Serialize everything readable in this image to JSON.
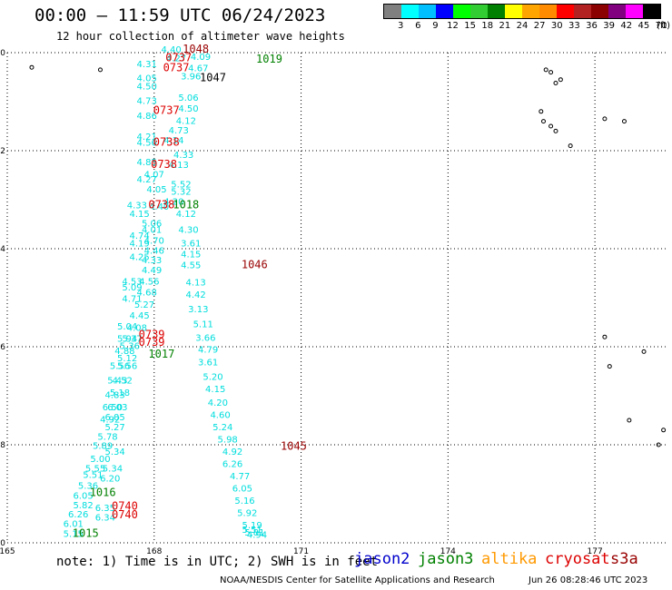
{
  "header": {
    "title": "00:00 – 11:59 UTC 06/24/2023",
    "subtitle": "12 hour collection of altimeter wave heights"
  },
  "color_scale": {
    "labels": [
      "3",
      "6",
      "9",
      "12",
      "15",
      "18",
      "21",
      "24",
      "27",
      "30",
      "33",
      "36",
      "39",
      "42",
      "45",
      "70"
    ],
    "unit": "(ft)",
    "colors": [
      "#808080",
      "#00ffff",
      "#00bfff",
      "#0000ff",
      "#00ff00",
      "#32cd32",
      "#008000",
      "#ffff00",
      "#ffa500",
      "#ff8c00",
      "#ff0000",
      "#b22222",
      "#8b0000",
      "#800080",
      "#ff00ff",
      "#000000"
    ]
  },
  "note": "note: 1) Time is in UTC; 2) SWH is in feet",
  "legend": {
    "items": [
      {
        "label": "jason2",
        "color": "#0000cc"
      },
      {
        "label": "jason3",
        "color": "#008000"
      },
      {
        "label": "altika",
        "color": "#ff9900"
      },
      {
        "label": "cryosat",
        "color": "#dd0000"
      },
      {
        "label": "s3a",
        "color": "#990000"
      }
    ]
  },
  "credit": {
    "source": "NOAA/NESDIS Center for Satellite Applications and Research",
    "timestamp": "Jun 26 08:28:46 UTC 2023"
  },
  "chart_data": {
    "type": "scatter",
    "title": "00:00 – 11:59 UTC 06/24/2023",
    "xlabel": "",
    "ylabel": "",
    "xlim": [
      165,
      178.5
    ],
    "ylim": [
      -10,
      0
    ],
    "x_ticks": [
      165,
      168,
      171,
      174,
      177
    ],
    "x_tick_labels": [
      "165",
      "168",
      "171",
      "174",
      "177"
    ],
    "y_ticks": [
      0,
      -2,
      -4,
      -6,
      -8,
      -10
    ],
    "y_tick_labels": [
      "0",
      "-2",
      "-4",
      "-6",
      "-8",
      "-10"
    ],
    "grid": true,
    "swh_points": [
      {
        "x": 167.85,
        "y": -0.3,
        "v": "4.31"
      },
      {
        "x": 168.35,
        "y": -0.0,
        "v": "4.40"
      },
      {
        "x": 168.45,
        "y": -0.18,
        "v": "4.27"
      },
      {
        "x": 167.85,
        "y": -0.58,
        "v": "4.05"
      },
      {
        "x": 167.85,
        "y": -0.75,
        "v": "4.50"
      },
      {
        "x": 167.85,
        "y": -1.05,
        "v": "4.73"
      },
      {
        "x": 167.85,
        "y": -1.35,
        "v": "4.86"
      },
      {
        "x": 167.85,
        "y": -1.78,
        "v": "4.21"
      },
      {
        "x": 167.85,
        "y": -1.9,
        "v": "4.56"
      },
      {
        "x": 167.85,
        "y": -2.3,
        "v": "4.85"
      },
      {
        "x": 167.85,
        "y": -2.65,
        "v": "4.27"
      },
      {
        "x": 167.65,
        "y": -3.18,
        "v": "4.33"
      },
      {
        "x": 167.7,
        "y": -3.35,
        "v": "4.15"
      },
      {
        "x": 167.7,
        "y": -3.8,
        "v": "4.74"
      },
      {
        "x": 167.7,
        "y": -3.95,
        "v": "4.19"
      },
      {
        "x": 167.7,
        "y": -4.23,
        "v": "4.25"
      },
      {
        "x": 167.55,
        "y": -4.73,
        "v": "4.53"
      },
      {
        "x": 167.55,
        "y": -4.85,
        "v": "5.09"
      },
      {
        "x": 167.55,
        "y": -5.08,
        "v": "4.71"
      },
      {
        "x": 167.45,
        "y": -5.65,
        "v": "5.04"
      },
      {
        "x": 167.45,
        "y": -5.9,
        "v": "5.94"
      },
      {
        "x": 167.4,
        "y": -6.15,
        "v": "4.88"
      },
      {
        "x": 167.3,
        "y": -6.45,
        "v": "5.56"
      },
      {
        "x": 167.25,
        "y": -6.75,
        "v": "5.43"
      },
      {
        "x": 167.2,
        "y": -7.05,
        "v": "4.83"
      },
      {
        "x": 167.15,
        "y": -7.3,
        "v": "6.50"
      },
      {
        "x": 167.1,
        "y": -7.55,
        "v": "4.92"
      },
      {
        "x": 167.05,
        "y": -7.9,
        "v": "5.78"
      },
      {
        "x": 166.95,
        "y": -8.08,
        "v": "5.89"
      },
      {
        "x": 166.9,
        "y": -8.35,
        "v": "5.00"
      },
      {
        "x": 166.8,
        "y": -8.55,
        "v": "5.55"
      },
      {
        "x": 166.75,
        "y": -8.68,
        "v": "5.51"
      },
      {
        "x": 166.65,
        "y": -8.9,
        "v": "5.36"
      },
      {
        "x": 166.55,
        "y": -9.1,
        "v": "6.05"
      },
      {
        "x": 166.55,
        "y": -9.3,
        "v": "5.82"
      },
      {
        "x": 166.45,
        "y": -9.48,
        "v": "6.26"
      },
      {
        "x": 166.35,
        "y": -9.68,
        "v": "6.01"
      },
      {
        "x": 166.35,
        "y": -9.88,
        "v": "5.15"
      },
      {
        "x": 168.0,
        "y": -2.55,
        "v": "4.07"
      },
      {
        "x": 168.05,
        "y": -2.85,
        "v": "4.05"
      },
      {
        "x": 168.1,
        "y": -3.2,
        "v": "4.40"
      },
      {
        "x": 167.95,
        "y": -3.55,
        "v": "5.06"
      },
      {
        "x": 167.95,
        "y": -3.68,
        "v": "4.01"
      },
      {
        "x": 168.0,
        "y": -3.9,
        "v": "4.70"
      },
      {
        "x": 168.0,
        "y": -4.1,
        "v": "4.46"
      },
      {
        "x": 167.95,
        "y": -4.3,
        "v": "4.33"
      },
      {
        "x": 167.95,
        "y": -4.5,
        "v": "4.49"
      },
      {
        "x": 167.9,
        "y": -4.73,
        "v": "4.56"
      },
      {
        "x": 167.85,
        "y": -4.95,
        "v": "4.68"
      },
      {
        "x": 167.8,
        "y": -5.2,
        "v": "5.27"
      },
      {
        "x": 167.7,
        "y": -5.43,
        "v": "4.45"
      },
      {
        "x": 167.65,
        "y": -5.68,
        "v": "4.08"
      },
      {
        "x": 167.55,
        "y": -5.9,
        "v": "5.37"
      },
      {
        "x": 167.5,
        "y": -6.05,
        "v": "5.36"
      },
      {
        "x": 167.45,
        "y": -6.3,
        "v": "5.12"
      },
      {
        "x": 167.45,
        "y": -6.45,
        "v": "5.56"
      },
      {
        "x": 167.35,
        "y": -6.75,
        "v": "4.52"
      },
      {
        "x": 167.3,
        "y": -7.0,
        "v": "5.18"
      },
      {
        "x": 167.25,
        "y": -7.3,
        "v": "6.03"
      },
      {
        "x": 167.2,
        "y": -7.5,
        "v": "6.05"
      },
      {
        "x": 167.2,
        "y": -7.7,
        "v": "5.27"
      },
      {
        "x": 167.2,
        "y": -8.2,
        "v": "5.34"
      },
      {
        "x": 167.15,
        "y": -8.55,
        "v": "5.34"
      },
      {
        "x": 167.1,
        "y": -8.75,
        "v": "6.20"
      },
      {
        "x": 167.0,
        "y": -9.35,
        "v": "6.35"
      },
      {
        "x": 167.0,
        "y": -9.55,
        "v": "6.34"
      },
      {
        "x": 168.95,
        "y": -0.15,
        "v": "4.09"
      },
      {
        "x": 168.9,
        "y": -0.38,
        "v": "4.67"
      },
      {
        "x": 168.75,
        "y": -0.55,
        "v": "3.96"
      },
      {
        "x": 168.7,
        "y": -0.98,
        "v": "5.06"
      },
      {
        "x": 168.7,
        "y": -1.2,
        "v": "4.50"
      },
      {
        "x": 168.65,
        "y": -1.45,
        "v": "4.12"
      },
      {
        "x": 168.5,
        "y": -1.65,
        "v": "4.73"
      },
      {
        "x": 168.4,
        "y": -1.85,
        "v": "4.14"
      },
      {
        "x": 168.6,
        "y": -2.15,
        "v": "4.33"
      },
      {
        "x": 168.5,
        "y": -2.35,
        "v": "4.13"
      },
      {
        "x": 168.55,
        "y": -2.75,
        "v": "5.52"
      },
      {
        "x": 168.55,
        "y": -2.9,
        "v": "5.32"
      },
      {
        "x": 168.4,
        "y": -3.1,
        "v": "4.20"
      },
      {
        "x": 168.65,
        "y": -3.35,
        "v": "4.12"
      },
      {
        "x": 168.7,
        "y": -3.68,
        "v": "4.30"
      },
      {
        "x": 168.75,
        "y": -3.95,
        "v": "3.61"
      },
      {
        "x": 168.75,
        "y": -4.18,
        "v": "4.15"
      },
      {
        "x": 168.75,
        "y": -4.4,
        "v": "4.55"
      },
      {
        "x": 168.85,
        "y": -4.75,
        "v": "4.13"
      },
      {
        "x": 168.85,
        "y": -5.0,
        "v": "4.42"
      },
      {
        "x": 168.9,
        "y": -5.3,
        "v": "3.13"
      },
      {
        "x": 169.0,
        "y": -5.6,
        "v": "5.11"
      },
      {
        "x": 169.05,
        "y": -5.88,
        "v": "3.66"
      },
      {
        "x": 169.1,
        "y": -6.12,
        "v": "4.79"
      },
      {
        "x": 169.1,
        "y": -6.38,
        "v": "3.61"
      },
      {
        "x": 169.2,
        "y": -6.68,
        "v": "5.20"
      },
      {
        "x": 169.25,
        "y": -6.93,
        "v": "4.15"
      },
      {
        "x": 169.3,
        "y": -7.2,
        "v": "4.20"
      },
      {
        "x": 169.35,
        "y": -7.45,
        "v": "4.60"
      },
      {
        "x": 169.4,
        "y": -7.7,
        "v": "5.24"
      },
      {
        "x": 169.5,
        "y": -7.95,
        "v": "5.98"
      },
      {
        "x": 169.6,
        "y": -8.2,
        "v": "4.92"
      },
      {
        "x": 169.6,
        "y": -8.45,
        "v": "6.26"
      },
      {
        "x": 169.75,
        "y": -8.7,
        "v": "4.77"
      },
      {
        "x": 169.8,
        "y": -8.95,
        "v": "6.05"
      },
      {
        "x": 169.85,
        "y": -9.2,
        "v": "5.16"
      },
      {
        "x": 169.9,
        "y": -9.45,
        "v": "5.92"
      },
      {
        "x": 170.0,
        "y": -9.7,
        "v": "5.19"
      },
      {
        "x": 170.0,
        "y": -9.8,
        "v": "5.51"
      },
      {
        "x": 170.05,
        "y": -9.85,
        "v": "5.81"
      },
      {
        "x": 170.1,
        "y": -9.9,
        "v": "4.94"
      }
    ],
    "time_markers": [
      {
        "x": 168.85,
        "y": -0.0,
        "label": "1048",
        "color": "#990000"
      },
      {
        "x": 168.5,
        "y": -0.18,
        "label": "0737",
        "color": "#dd0000"
      },
      {
        "x": 170.35,
        "y": -0.2,
        "label": "1019",
        "color": "#008000"
      },
      {
        "x": 168.45,
        "y": -0.38,
        "label": "0737",
        "color": "#dd0000"
      },
      {
        "x": 169.2,
        "y": -0.58,
        "label": "1047",
        "color": "#000000"
      },
      {
        "x": 168.25,
        "y": -1.25,
        "label": "0737",
        "color": "#dd0000"
      },
      {
        "x": 168.25,
        "y": -1.9,
        "label": "0738",
        "color": "#dd0000"
      },
      {
        "x": 168.2,
        "y": -2.35,
        "label": "0738",
        "color": "#dd0000"
      },
      {
        "x": 168.15,
        "y": -3.18,
        "label": "0738",
        "color": "#dd0000"
      },
      {
        "x": 168.65,
        "y": -3.18,
        "label": "1018",
        "color": "#008000"
      },
      {
        "x": 170.05,
        "y": -4.4,
        "label": "1046",
        "color": "#990000"
      },
      {
        "x": 167.95,
        "y": -5.82,
        "label": "0739",
        "color": "#dd0000"
      },
      {
        "x": 167.95,
        "y": -5.98,
        "label": "0739",
        "color": "#dd0000"
      },
      {
        "x": 168.15,
        "y": -6.22,
        "label": "1017",
        "color": "#008000"
      },
      {
        "x": 170.85,
        "y": -8.1,
        "label": "1045",
        "color": "#990000"
      },
      {
        "x": 166.95,
        "y": -9.05,
        "label": "1016",
        "color": "#008000"
      },
      {
        "x": 167.4,
        "y": -9.32,
        "label": "0740",
        "color": "#dd0000"
      },
      {
        "x": 167.4,
        "y": -9.5,
        "label": "0740",
        "color": "#dd0000"
      },
      {
        "x": 166.6,
        "y": -9.88,
        "label": "1015",
        "color": "#008000"
      }
    ]
  }
}
